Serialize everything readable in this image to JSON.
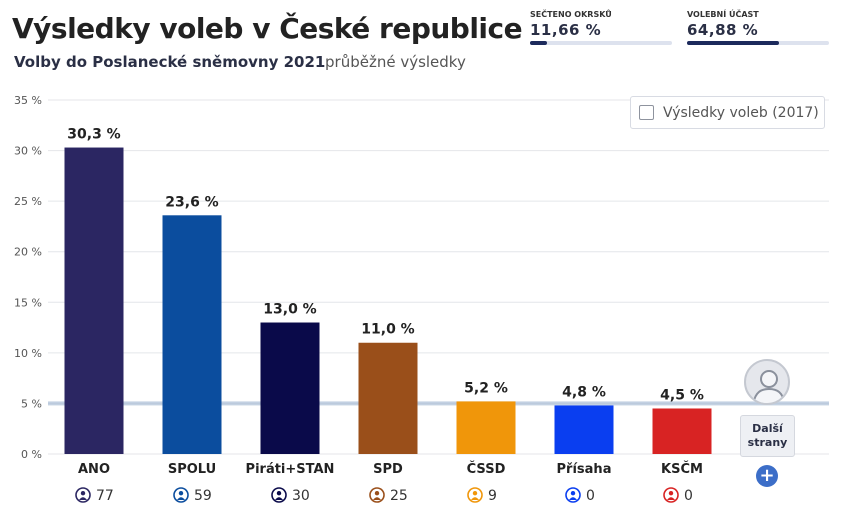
{
  "header": {
    "title": "Výsledky voleb v České republice",
    "subtitle": "Volby do Poslanecké sněmovny 2021",
    "subnote": "průběžné výsledky"
  },
  "stats": {
    "counted": {
      "label": "SEČTENO OKRSKŮ",
      "value": "11,66 %",
      "fraction": 0.1166
    },
    "turnout": {
      "label": "VOLEBNÍ ÚČAST",
      "value": "64,88 %",
      "fraction": 0.6488
    }
  },
  "legend": {
    "label": "Výsledky voleb (2017)"
  },
  "more": {
    "label_line1": "Další",
    "label_line2": "strany",
    "plus": "+",
    "avatar_icon": "person-silhouette-icon"
  },
  "colors": {
    "accent": "#1c2a5c",
    "threshold_line": "#a9bdd6",
    "plus_button": "#3c6ec8"
  },
  "chart_data": {
    "type": "bar",
    "ylim": [
      0,
      35
    ],
    "ytick_labels": [
      "0 %",
      "5 %",
      "10 %",
      "15 %",
      "20 %",
      "25 %",
      "30 %",
      "35 %"
    ],
    "ytick_values": [
      0,
      5,
      10,
      15,
      20,
      25,
      30,
      35
    ],
    "threshold": 5,
    "grid": true,
    "categories": [
      "ANO",
      "SPOLU",
      "Piráti+STAN",
      "SPD",
      "ČSSD",
      "Přísaha",
      "KSČM"
    ],
    "values": [
      30.3,
      23.6,
      13.0,
      11.0,
      5.2,
      4.8,
      4.5
    ],
    "value_labels": [
      "30,3 %",
      "23,6 %",
      "13,0 %",
      "11,0 %",
      "5,2 %",
      "4,8 %",
      "4,5 %"
    ],
    "seats": [
      "77",
      "59",
      "30",
      "25",
      "9",
      "0",
      "0"
    ],
    "bar_colors": [
      "#2b2662",
      "#0b4d9e",
      "#0a0a4a",
      "#9a4f1a",
      "#f0960a",
      "#0a3ef0",
      "#d82323"
    ]
  }
}
